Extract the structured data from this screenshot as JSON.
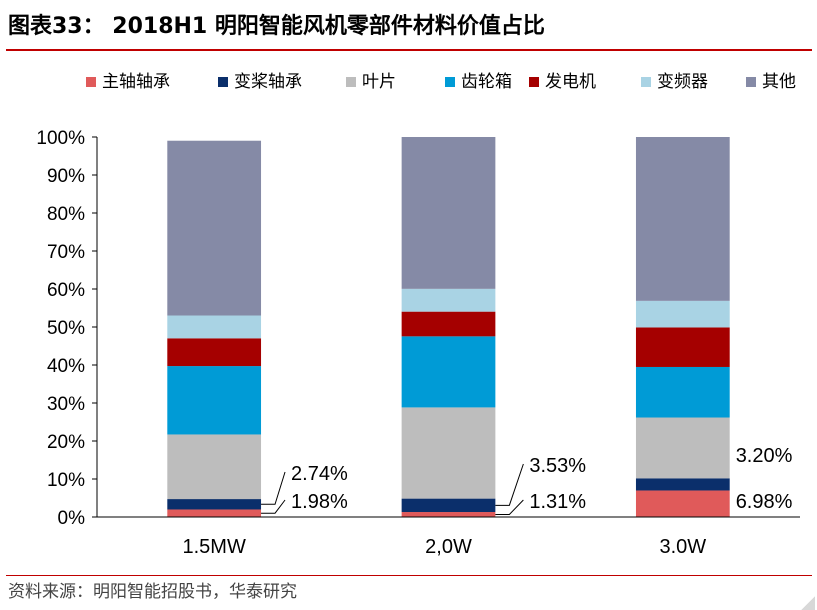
{
  "title": "图表33：  2018H1 明阳智能风机零部件材料价值占比",
  "source": "资料来源：明阳智能招股书，华泰研究",
  "chart_data": {
    "type": "bar",
    "stacked": true,
    "categories": [
      "1.5MW",
      "2,0W",
      "3.0W"
    ],
    "series": [
      {
        "name": "主轴轴承",
        "color": "#e05a5a",
        "values": [
          1.98,
          1.31,
          6.98
        ]
      },
      {
        "name": "变桨轴承",
        "color": "#0b2f6b",
        "values": [
          2.74,
          3.53,
          3.2
        ]
      },
      {
        "name": "叶片",
        "color": "#bdbdbd",
        "values": [
          17.0,
          24.0,
          16.0
        ]
      },
      {
        "name": "齿轮箱",
        "color": "#009bd6",
        "values": [
          18.0,
          18.7,
          13.3
        ]
      },
      {
        "name": "发电机",
        "color": "#a50000",
        "values": [
          7.3,
          6.5,
          10.4
        ]
      },
      {
        "name": "变频器",
        "color": "#a9d3e4",
        "values": [
          6.0,
          6.0,
          7.0
        ]
      },
      {
        "name": "其他",
        "color": "#858aa6",
        "values": [
          46.0,
          39.96,
          43.12
        ]
      }
    ],
    "ylim": [
      0,
      100
    ],
    "yticks": [
      "0%",
      "10%",
      "20%",
      "30%",
      "40%",
      "50%",
      "60%",
      "70%",
      "80%",
      "90%",
      "100%"
    ],
    "annotations": [
      {
        "text": "2.74%",
        "category": "1.5MW",
        "value": 2.74
      },
      {
        "text": "1.98%",
        "category": "1.5MW",
        "value": 1.98
      },
      {
        "text": "3.53%",
        "category": "2,0W",
        "value": 3.53
      },
      {
        "text": "1.31%",
        "category": "2,0W",
        "value": 1.31
      },
      {
        "text": "3.20%",
        "category": "3.0W",
        "value": 3.2
      },
      {
        "text": "6.98%",
        "category": "3.0W",
        "value": 6.98
      }
    ],
    "legend_position": "top",
    "grid": false
  }
}
